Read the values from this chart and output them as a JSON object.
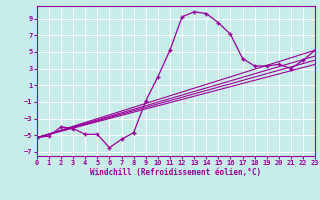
{
  "title": "",
  "xlabel": "Windchill (Refroidissement éolien,°C)",
  "ylabel": "",
  "bg_color": "#c8ecea",
  "grid_color": "#ffffff",
  "line_color": "#990099",
  "marker": "+",
  "xlim": [
    0,
    23
  ],
  "ylim": [
    -7.5,
    10.5
  ],
  "xticks": [
    0,
    1,
    2,
    3,
    4,
    5,
    6,
    7,
    8,
    9,
    10,
    11,
    12,
    13,
    14,
    15,
    16,
    17,
    18,
    19,
    20,
    21,
    22,
    23
  ],
  "yticks": [
    -7,
    -5,
    -3,
    -1,
    1,
    3,
    5,
    7,
    9
  ],
  "curve1_x": [
    0,
    1,
    2,
    3,
    4,
    5,
    6,
    7,
    8,
    9,
    10,
    11,
    12,
    13,
    14,
    15,
    16,
    17,
    18,
    19,
    20,
    21,
    22,
    23
  ],
  "curve1_y": [
    -5.3,
    -5.1,
    -4.0,
    -4.2,
    -4.9,
    -4.9,
    -6.5,
    -5.5,
    -4.7,
    -0.9,
    2.0,
    5.2,
    9.2,
    9.8,
    9.6,
    8.5,
    7.1,
    4.2,
    3.3,
    3.3,
    3.5,
    3.0,
    4.0,
    5.2
  ],
  "curve2_x": [
    0,
    23
  ],
  "curve2_y": [
    -5.3,
    5.2
  ],
  "curve3_x": [
    0,
    23
  ],
  "curve3_y": [
    -5.3,
    4.5
  ],
  "curve4_x": [
    0,
    23
  ],
  "curve4_y": [
    -5.3,
    4.0
  ],
  "curve5_x": [
    0,
    23
  ],
  "curve5_y": [
    -5.3,
    3.5
  ],
  "fig_width": 3.2,
  "fig_height": 2.0,
  "dpi": 100
}
